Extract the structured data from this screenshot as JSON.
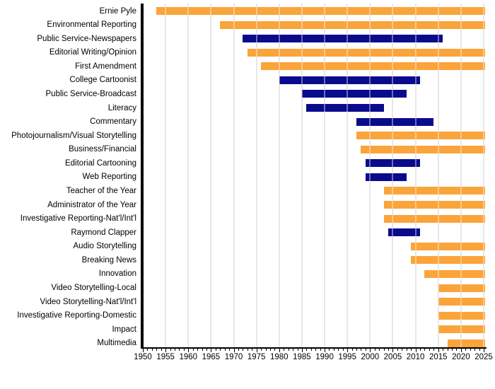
{
  "chart_data": {
    "type": "bar",
    "variant": "horizontal-range-timeline",
    "title": "",
    "xlabel": "",
    "ylabel": "",
    "x_axis": {
      "min": 1950,
      "max": 2025,
      "major_tick_step": 5,
      "minor_tick_step": 1,
      "tick_labels": [
        "1950",
        "1955",
        "1960",
        "1965",
        "1970",
        "1975",
        "1980",
        "1985",
        "1990",
        "1995",
        "2000",
        "2005",
        "2010",
        "2015",
        "2020",
        "2025"
      ]
    },
    "grid": "vertical-major",
    "legend": "none",
    "status_colors": {
      "active": "#FAA43A",
      "discontinued": "#0A0A8C"
    },
    "rows": [
      {
        "label": "Ernie Pyle",
        "start": 1953,
        "end": 2025,
        "status": "active"
      },
      {
        "label": "Environmental Reporting",
        "start": 1967,
        "end": 2025,
        "status": "active"
      },
      {
        "label": "Public Service-Newspapers",
        "start": 1972,
        "end": 2016,
        "status": "discontinued"
      },
      {
        "label": "Editorial Writing/Opinion",
        "start": 1973,
        "end": 2025,
        "status": "active"
      },
      {
        "label": "First Amendment",
        "start": 1976,
        "end": 2025,
        "status": "active"
      },
      {
        "label": "College Cartoonist",
        "start": 1980,
        "end": 2011,
        "status": "discontinued"
      },
      {
        "label": "Public Service-Broadcast",
        "start": 1985,
        "end": 2008,
        "status": "discontinued"
      },
      {
        "label": "Literacy",
        "start": 1986,
        "end": 2003,
        "status": "discontinued"
      },
      {
        "label": "Commentary",
        "start": 1997,
        "end": 2014,
        "status": "discontinued"
      },
      {
        "label": "Photojournalism/Visual Storytelling",
        "start": 1997,
        "end": 2025,
        "status": "active"
      },
      {
        "label": "Business/Financial",
        "start": 1998,
        "end": 2025,
        "status": "active"
      },
      {
        "label": "Editorial Cartooning",
        "start": 1999,
        "end": 2011,
        "status": "discontinued"
      },
      {
        "label": "Web Reporting",
        "start": 1999,
        "end": 2008,
        "status": "discontinued"
      },
      {
        "label": "Teacher of the Year",
        "start": 2003,
        "end": 2025,
        "status": "active"
      },
      {
        "label": "Administrator of the Year",
        "start": 2003,
        "end": 2025,
        "status": "active"
      },
      {
        "label": "Investigative Reporting-Nat'l/Int'l",
        "start": 2003,
        "end": 2025,
        "status": "active"
      },
      {
        "label": "Raymond Clapper",
        "start": 2004,
        "end": 2011,
        "status": "discontinued"
      },
      {
        "label": "Audio Storytelling",
        "start": 2009,
        "end": 2025,
        "status": "active"
      },
      {
        "label": "Breaking News",
        "start": 2009,
        "end": 2025,
        "status": "active"
      },
      {
        "label": "Innovation",
        "start": 2012,
        "end": 2025,
        "status": "active"
      },
      {
        "label": "Video Storytelling-Local",
        "start": 2015,
        "end": 2025,
        "status": "active"
      },
      {
        "label": "Video Storytelling-Nat'l/Int'l",
        "start": 2015,
        "end": 2025,
        "status": "active"
      },
      {
        "label": "Investigative Reporting-Domestic",
        "start": 2015,
        "end": 2025,
        "status": "active"
      },
      {
        "label": "Impact",
        "start": 2015,
        "end": 2025,
        "status": "active"
      },
      {
        "label": "Multimedia",
        "start": 2017,
        "end": 2025,
        "status": "active"
      }
    ]
  },
  "colors": {
    "background": "#FFFFFF",
    "axis": "#000000",
    "gridline": "#D9D9D9",
    "label_text": "#000000"
  }
}
